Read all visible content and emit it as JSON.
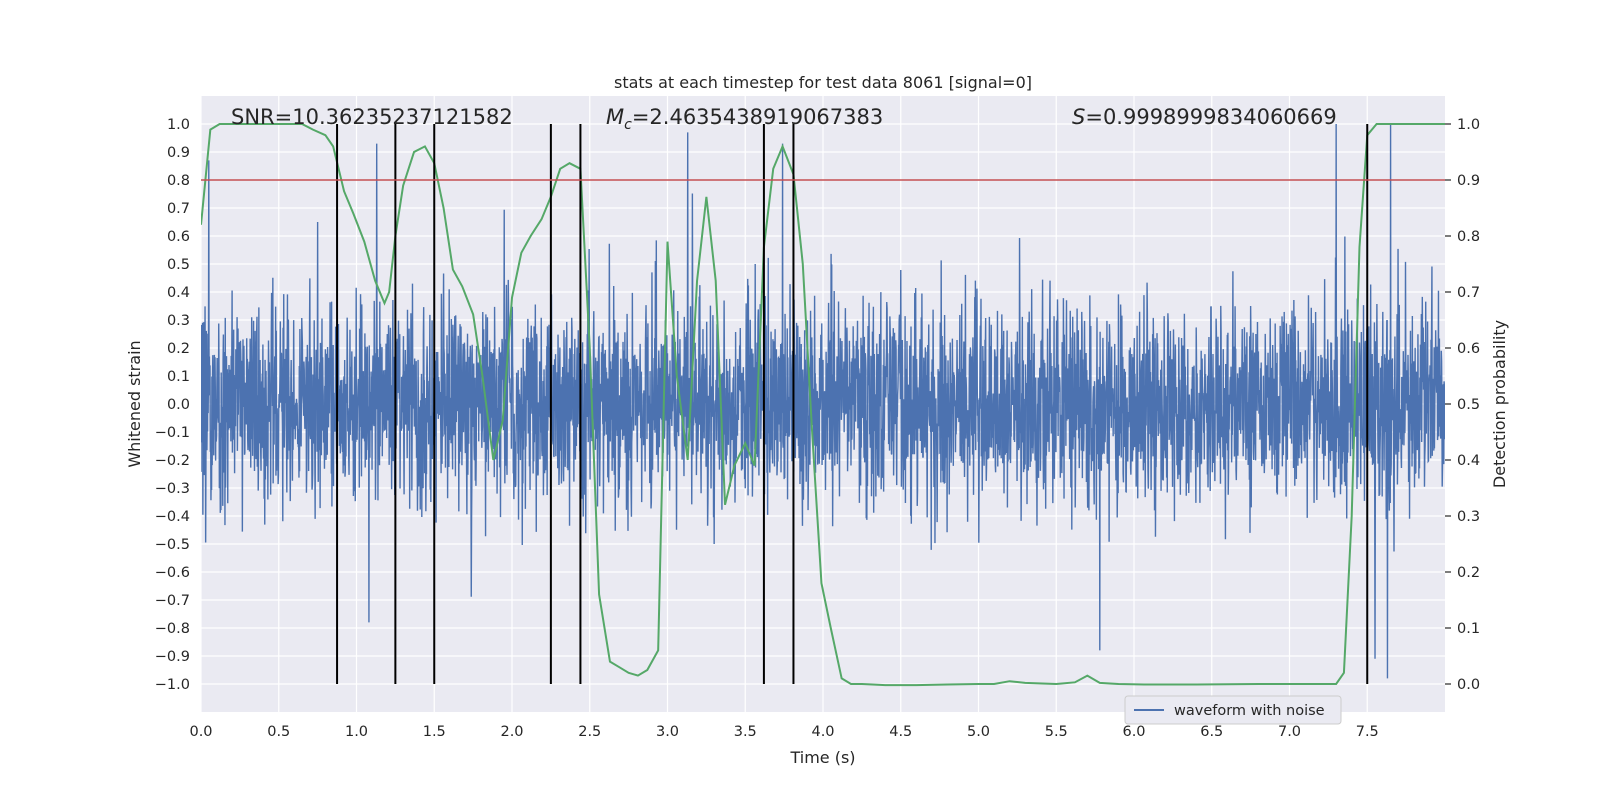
{
  "chart_data": {
    "type": "line",
    "title": "stats at each timestep for test data 8061 [signal=0]",
    "xlabel": "Time (s)",
    "ylabel": "Whitened strain",
    "y2label": "Detection probability",
    "xlim": [
      0,
      8
    ],
    "ylim": [
      -1.1,
      1.1
    ],
    "y2lim": [
      -0.05,
      1.05
    ],
    "xticks": [
      "0.0",
      "0.5",
      "1.0",
      "1.5",
      "2.0",
      "2.5",
      "3.0",
      "3.5",
      "4.0",
      "4.5",
      "5.0",
      "5.5",
      "6.0",
      "6.5",
      "7.0",
      "7.5"
    ],
    "yticks": [
      "−1.0",
      "−0.9",
      "−0.8",
      "−0.7",
      "−0.6",
      "−0.5",
      "−0.4",
      "−0.3",
      "−0.2",
      "−0.1",
      "0.0",
      "0.1",
      "0.2",
      "0.3",
      "0.4",
      "0.5",
      "0.6",
      "0.7",
      "0.8",
      "0.9",
      "1.0"
    ],
    "y2ticks": [
      "0.0",
      "0.1",
      "0.2",
      "0.3",
      "0.4",
      "0.5",
      "0.6",
      "0.7",
      "0.8",
      "0.9",
      "1.0"
    ],
    "grid": true,
    "legend": {
      "position": "lower-right",
      "entries": [
        "waveform with noise"
      ]
    },
    "annotations": {
      "snr": "SNR=10.36235237121582",
      "mc_symbol": "M",
      "mc_sub": "c",
      "mc_value": "=2.4635438919067383",
      "s_symbol": "S",
      "s_value": "=0.9998999834060669"
    },
    "threshold": {
      "y2": 0.9,
      "color": "#c44e52"
    },
    "vlines_x": [
      0.875,
      1.25,
      1.5,
      2.25,
      2.44,
      3.62,
      3.81,
      7.5
    ],
    "colors": {
      "waveform": "#4c72b0",
      "probability": "#55a868",
      "threshold": "#c44e52",
      "vline": "#000000",
      "plot_bg": "#eaeaf2",
      "grid": "#ffffff"
    },
    "series": [
      {
        "name": "waveform with noise",
        "kind": "noise",
        "amplitude": {
          "typical": 0.4,
          "max": 1.0
        },
        "spikes": [
          {
            "x": 0.05,
            "y": 0.87
          },
          {
            "x": 1.13,
            "y": 0.93
          },
          {
            "x": 1.08,
            "y": -0.78
          },
          {
            "x": 3.13,
            "y": 0.97
          },
          {
            "x": 3.74,
            "y": 0.93
          },
          {
            "x": 5.78,
            "y": -0.88
          },
          {
            "x": 7.3,
            "y": 1.0
          },
          {
            "x": 7.55,
            "y": 0.98
          },
          {
            "x": 7.65,
            "y": 1.0
          },
          {
            "x": 7.63,
            "y": -0.98
          },
          {
            "x": 7.55,
            "y": -0.91
          },
          {
            "x": 3.3,
            "y": -0.5
          }
        ]
      },
      {
        "name": "",
        "kind": "probability",
        "axis": "y2",
        "x": [
          0.0,
          0.06,
          0.12,
          0.25,
          0.4,
          0.55,
          0.65,
          0.72,
          0.8,
          0.85,
          0.92,
          0.98,
          1.05,
          1.12,
          1.18,
          1.21,
          1.25,
          1.3,
          1.37,
          1.44,
          1.5,
          1.56,
          1.62,
          1.68,
          1.75,
          1.81,
          1.88,
          1.94,
          2.0,
          2.06,
          2.12,
          2.19,
          2.25,
          2.31,
          2.37,
          2.44,
          2.5,
          2.56,
          2.63,
          2.69,
          2.75,
          2.81,
          2.87,
          2.94,
          3.0,
          3.06,
          3.13,
          3.19,
          3.25,
          3.31,
          3.37,
          3.43,
          3.5,
          3.56,
          3.62,
          3.68,
          3.74,
          3.81,
          3.87,
          3.93,
          3.99,
          4.05,
          4.12,
          4.18,
          4.25,
          4.4,
          4.6,
          4.8,
          5.0,
          5.1,
          5.2,
          5.3,
          5.5,
          5.62,
          5.7,
          5.78,
          5.9,
          6.1,
          6.4,
          6.8,
          7.0,
          7.2,
          7.3,
          7.35,
          7.4,
          7.45,
          7.5,
          7.56,
          7.62,
          7.7,
          8.0
        ],
        "y": [
          0.82,
          0.99,
          1.0,
          1.0,
          1.0,
          1.0,
          1.0,
          0.99,
          0.98,
          0.96,
          0.88,
          0.84,
          0.79,
          0.72,
          0.68,
          0.7,
          0.8,
          0.89,
          0.95,
          0.96,
          0.93,
          0.85,
          0.74,
          0.71,
          0.66,
          0.55,
          0.4,
          0.47,
          0.69,
          0.77,
          0.8,
          0.83,
          0.87,
          0.92,
          0.93,
          0.92,
          0.6,
          0.16,
          0.04,
          0.03,
          0.02,
          0.015,
          0.025,
          0.06,
          0.79,
          0.55,
          0.4,
          0.72,
          0.87,
          0.72,
          0.32,
          0.39,
          0.43,
          0.39,
          0.78,
          0.92,
          0.96,
          0.91,
          0.75,
          0.45,
          0.18,
          0.1,
          0.01,
          0.0,
          0.0,
          -0.002,
          -0.002,
          -0.001,
          0.0,
          0.0,
          0.005,
          0.002,
          0.0,
          0.003,
          0.015,
          0.002,
          0.0,
          -0.001,
          -0.001,
          0.0,
          0.0,
          0.0,
          0.0,
          0.02,
          0.3,
          0.78,
          0.98,
          1.0,
          1.0,
          1.0,
          1.0
        ]
      }
    ]
  }
}
